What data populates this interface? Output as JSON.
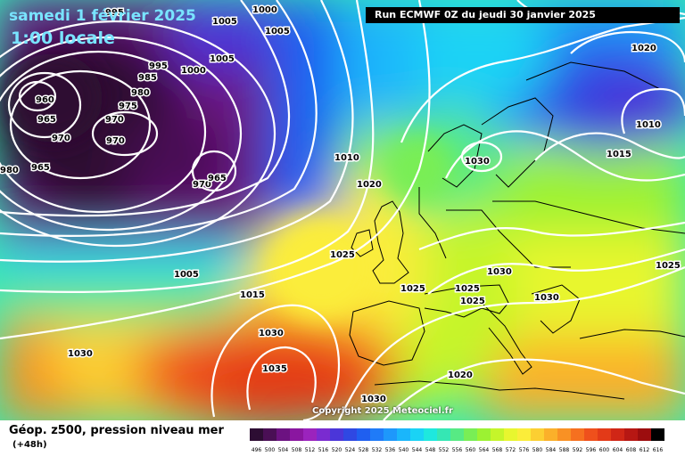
{
  "header": {
    "date": "samedi 1 février 2025",
    "local_time": "1:00 locale",
    "run": "Run ECMWF 0Z du jeudi 30 janvier 2025"
  },
  "copyright": "Copyright 2025 Meteociel.fr",
  "footer": {
    "title": "Géop. z500, pression niveau mer",
    "lead": "(+48h)"
  },
  "pressure_labels": [
    "995",
    "1005",
    "1000",
    "1005",
    "1000",
    "1005",
    "995",
    "985",
    "980",
    "960",
    "975",
    "965",
    "970",
    "970",
    "970",
    "965",
    "970",
    "965",
    "1020",
    "1010",
    "1015",
    "1030",
    "1010",
    "1020",
    "1025",
    "1030",
    "1025",
    "1025",
    "1005",
    "1025",
    "1030",
    "1015",
    "1030",
    "1030",
    "1035",
    "1020",
    "1030",
    "980",
    "1025"
  ],
  "scale": {
    "values": [
      496,
      500,
      504,
      508,
      512,
      516,
      520,
      524,
      528,
      532,
      536,
      540,
      544,
      548,
      552,
      556,
      560,
      564,
      568,
      572,
      576,
      580,
      584,
      588,
      592,
      596,
      600,
      604,
      608,
      612,
      616
    ],
    "colors": [
      "#2d0d33",
      "#4a0f55",
      "#6c1281",
      "#8a16a0",
      "#9b23bd",
      "#7a2bd0",
      "#4b36d9",
      "#2f48e3",
      "#1f5ff0",
      "#1f7bf8",
      "#1e98fb",
      "#1ab6fb",
      "#1ad3f5",
      "#1ee8de",
      "#35e7b4",
      "#57ea84",
      "#79ee55",
      "#9cf232",
      "#c5f52a",
      "#e8f62f",
      "#fbed3a",
      "#fccf32",
      "#fbb02a",
      "#f99124",
      "#f6701f",
      "#ef501c",
      "#e33a18",
      "#d02616",
      "#b71713",
      "#9c0d0e",
      "#000000"
    ]
  }
}
